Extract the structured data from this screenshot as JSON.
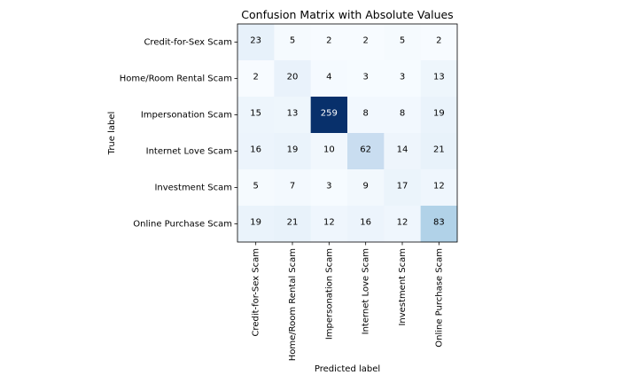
{
  "chart_data": {
    "type": "heatmap",
    "title": "Confusion Matrix with Absolute Values",
    "xlabel": "Predicted label",
    "ylabel": "True label",
    "rows": [
      "Credit-for-Sex Scam",
      "Home/Room Rental Scam",
      "Impersonation Scam",
      "Internet Love Scam",
      "Investment Scam",
      "Online Purchase Scam"
    ],
    "cols": [
      "Credit-for-Sex Scam",
      "Home/Room Rental Scam",
      "Impersonation Scam",
      "Internet Love Scam",
      "Investment Scam",
      "Online Purchase Scam"
    ],
    "values": [
      [
        23,
        5,
        2,
        2,
        5,
        2
      ],
      [
        2,
        20,
        4,
        3,
        3,
        13
      ],
      [
        15,
        13,
        259,
        8,
        8,
        19
      ],
      [
        16,
        19,
        10,
        62,
        14,
        21
      ],
      [
        5,
        7,
        3,
        9,
        17,
        12
      ],
      [
        19,
        21,
        12,
        16,
        12,
        83
      ]
    ],
    "colormap": "Blues",
    "colorbar": false,
    "grid": false
  }
}
